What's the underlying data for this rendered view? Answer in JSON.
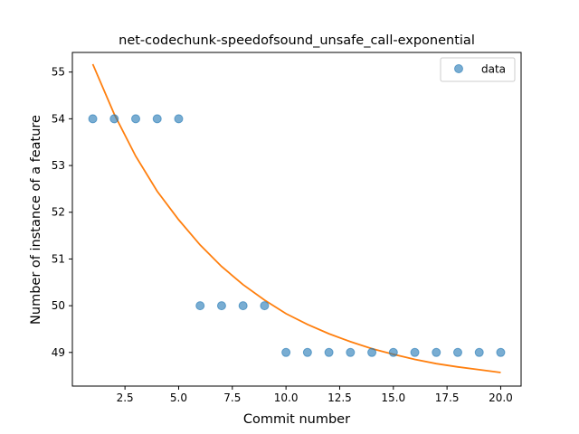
{
  "chart_data": {
    "type": "scatter",
    "title": "net-codechunk-speedofsound_unsafe_call-exponential",
    "xlabel": "Commit number",
    "ylabel": "Number of instance of a feature",
    "xlim": [
      0.05,
      20.95
    ],
    "ylim": [
      48.28,
      55.42
    ],
    "xticks": [
      2.5,
      5.0,
      7.5,
      10.0,
      12.5,
      15.0,
      17.5,
      20.0
    ],
    "xtick_labels": [
      "2.5",
      "5.0",
      "7.5",
      "10.0",
      "12.5",
      "15.0",
      "17.5",
      "20.0"
    ],
    "yticks": [
      49,
      50,
      51,
      52,
      53,
      54,
      55
    ],
    "ytick_labels": [
      "49",
      "50",
      "51",
      "52",
      "53",
      "54",
      "55"
    ],
    "grid": false,
    "legend": {
      "position": "top-right",
      "entries": [
        "data"
      ]
    },
    "series": [
      {
        "name": "data",
        "kind": "scatter",
        "color": "#1f77b4",
        "x": [
          1,
          2,
          3,
          4,
          5,
          6,
          7,
          8,
          9,
          10,
          11,
          12,
          13,
          14,
          15,
          16,
          17,
          18,
          19,
          20
        ],
        "y": [
          54,
          54,
          54,
          54,
          54,
          50,
          50,
          50,
          50,
          49,
          49,
          49,
          49,
          49,
          49,
          49,
          49,
          49,
          49,
          49
        ]
      },
      {
        "kind": "line",
        "color": "#ff7f0e",
        "x": [
          1,
          2,
          3,
          4,
          5,
          6,
          7,
          8,
          9,
          10,
          11,
          12,
          13,
          14,
          15,
          16,
          17,
          18,
          19,
          20
        ],
        "y": [
          55.17,
          54.1,
          53.2,
          52.45,
          51.84,
          51.3,
          50.84,
          50.45,
          50.12,
          49.83,
          49.6,
          49.4,
          49.23,
          49.08,
          48.96,
          48.85,
          48.76,
          48.69,
          48.63,
          48.57
        ]
      }
    ]
  }
}
